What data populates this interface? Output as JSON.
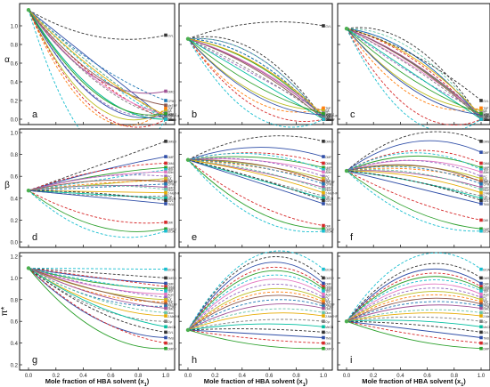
{
  "figure": {
    "xlabel": "Mole fraction of HBA solvent (x",
    "xlabel_sub": "1",
    "xlabel_end": ")",
    "row_labels": [
      "α",
      "β",
      "π*"
    ]
  },
  "solvent_labels": [
    "DMSO",
    "DMF",
    "DMA",
    "NMP",
    "TEP",
    "Acet",
    "PC",
    "EA",
    "THF",
    "MeTHF",
    "CPME",
    "DMC",
    "Diox",
    "2-MeTHF",
    "Cyr",
    "MeCN",
    "GVL",
    "TMU",
    "DMI",
    "DMPU",
    "EtOAc"
  ],
  "colors": [
    "#333333",
    "#2e4da7",
    "#d62728",
    "#2ca02c",
    "#17becf",
    "#e377c2",
    "#9467bd",
    "#bcbd22",
    "#ff7f0e",
    "#8c564b",
    "#1f77b4",
    "#a05195",
    "#66c2a5",
    "#e6ab02",
    "#7f7f7f",
    "#00bfa0"
  ],
  "chart_data": [
    {
      "type": "line",
      "panel": "a",
      "row": "α",
      "xlim": [
        0,
        1
      ],
      "ylim": [
        0,
        1.2
      ],
      "yticks": [
        0.0,
        0.2,
        0.4,
        0.6,
        0.8,
        1.0
      ],
      "x_ticks": [
        "0.0",
        "0.2",
        "0.4",
        "0.6",
        "0.8",
        "1.0"
      ],
      "start": 1.17,
      "ends": [
        0.0,
        0.0,
        0.0,
        0.0,
        0.0,
        0.05,
        0.08,
        0.1,
        0.12,
        0.15,
        0.2,
        0.3,
        0.0,
        0.04,
        0.02,
        0.0,
        0.9,
        0.05,
        0.0,
        0.06,
        0.0
      ],
      "peak": [
        -0.05,
        0.0,
        -0.15,
        -0.3,
        -0.1,
        -0.2,
        -0.4,
        -0.5,
        -0.6,
        -0.2,
        -0.1,
        -0.3,
        -0.05,
        -0.1,
        -0.2,
        -0.3,
        -0.15,
        -0.4,
        -0.5,
        -0.35,
        -0.9
      ]
    },
    {
      "type": "line",
      "panel": "b",
      "row": "α",
      "xlim": [
        0,
        1
      ],
      "ylim": [
        0,
        1.2
      ],
      "yticks": [
        0.0,
        0.2,
        0.4,
        0.6,
        0.8,
        1.0
      ],
      "x_ticks": [
        "0.0",
        "0.2",
        "0.4",
        "0.6",
        "0.8",
        "1.0"
      ],
      "start": 0.86,
      "ends": [
        0.0,
        0.0,
        0.0,
        0.02,
        0.0,
        0.05,
        0.08,
        0.1,
        0.12,
        0.0,
        0.0,
        0.03,
        0.0,
        0.04,
        0.02,
        0.0,
        1.0,
        0.05,
        0.0,
        0.06,
        0.0
      ],
      "peak": [
        0.3,
        0.25,
        0.2,
        0.15,
        0.2,
        0.1,
        0.0,
        -0.2,
        -0.3,
        0.1,
        0.2,
        0.1,
        0.25,
        0.15,
        0.05,
        0.0,
        0.1,
        -0.2,
        -0.3,
        -0.1,
        -0.4
      ]
    },
    {
      "type": "line",
      "panel": "c",
      "row": "α",
      "xlim": [
        0,
        1
      ],
      "ylim": [
        0,
        1.2
      ],
      "yticks": [
        0.0,
        0.2,
        0.4,
        0.6,
        0.8,
        1.0
      ],
      "x_ticks": [
        "0.0",
        "0.2",
        "0.4",
        "0.6",
        "0.8",
        "1.0"
      ],
      "start": 0.97,
      "ends": [
        0.0,
        0.0,
        0.0,
        0.02,
        0.0,
        0.05,
        0.08,
        0.1,
        0.12,
        0.0,
        0.0,
        0.03,
        0.0,
        0.04,
        0.02,
        0.0,
        0.2,
        0.05,
        0.0,
        0.06,
        0.0
      ],
      "peak": [
        0.3,
        0.2,
        0.15,
        0.1,
        0.2,
        0.05,
        -0.05,
        -0.2,
        -0.3,
        0.1,
        0.2,
        0.1,
        0.25,
        0.15,
        0.05,
        0.0,
        0.1,
        -0.2,
        -0.4,
        -0.1,
        -0.5
      ]
    },
    {
      "type": "line",
      "panel": "d",
      "row": "β",
      "xlim": [
        0,
        1
      ],
      "ylim": [
        0,
        1.0
      ],
      "yticks": [
        0.0,
        0.2,
        0.4,
        0.6,
        0.8,
        1.0
      ],
      "x_ticks": [
        "0.0",
        "0.2",
        "0.4",
        "0.6",
        "0.8",
        "1.0"
      ],
      "start": 0.47,
      "ends": [
        0.92,
        0.78,
        0.72,
        0.68,
        0.66,
        0.64,
        0.6,
        0.58,
        0.56,
        0.55,
        0.53,
        0.5,
        0.48,
        0.45,
        0.42,
        0.4,
        0.38,
        0.35,
        0.18,
        0.12,
        0.1
      ],
      "peak": [
        0.0,
        0.02,
        0.05,
        0.03,
        0.0,
        0.04,
        0.06,
        0.0,
        0.02,
        0.05,
        0.0,
        0.03,
        0.04,
        0.0,
        -0.02,
        0.0,
        0.02,
        0.0,
        -0.1,
        -0.15,
        -0.2
      ]
    },
    {
      "type": "line",
      "panel": "e",
      "row": "β",
      "xlim": [
        0,
        1
      ],
      "ylim": [
        0,
        1.0
      ],
      "yticks": [
        0.0,
        0.2,
        0.4,
        0.6,
        0.8,
        1.0
      ],
      "x_ticks": [
        "0.0",
        "0.2",
        "0.4",
        "0.6",
        "0.8",
        "1.0"
      ],
      "start": 0.75,
      "ends": [
        0.92,
        0.78,
        0.72,
        0.68,
        0.66,
        0.64,
        0.6,
        0.58,
        0.56,
        0.55,
        0.53,
        0.5,
        0.48,
        0.45,
        0.42,
        0.4,
        0.38,
        0.35,
        0.15,
        0.12,
        0.1
      ],
      "peak": [
        0.12,
        0.1,
        0.08,
        0.06,
        0.1,
        0.05,
        0.07,
        0.04,
        0.03,
        0.06,
        0.05,
        0.02,
        0.04,
        0.03,
        0.0,
        0.0,
        0.02,
        0.0,
        -0.1,
        -0.15,
        -0.2
      ]
    },
    {
      "type": "line",
      "panel": "f",
      "row": "β",
      "xlim": [
        0,
        1
      ],
      "ylim": [
        0,
        1.0
      ],
      "yticks": [
        0.0,
        0.2,
        0.4,
        0.6,
        0.8,
        1.0
      ],
      "x_ticks": [
        "0.0",
        "0.2",
        "0.4",
        "0.6",
        "0.8",
        "1.0"
      ],
      "start": 0.65,
      "ends": [
        0.92,
        0.82,
        0.72,
        0.68,
        0.66,
        0.64,
        0.6,
        0.58,
        0.56,
        0.55,
        0.53,
        0.5,
        0.48,
        0.45,
        0.42,
        0.4,
        0.38,
        0.35,
        0.2,
        0.12,
        0.1
      ],
      "peak": [
        0.2,
        0.18,
        0.15,
        0.12,
        0.16,
        0.1,
        0.12,
        0.08,
        0.06,
        0.1,
        0.09,
        0.05,
        0.07,
        0.05,
        0.02,
        0.03,
        0.04,
        0.0,
        -0.05,
        -0.1,
        -0.15
      ]
    },
    {
      "type": "line",
      "panel": "g",
      "row": "π*",
      "xlim": [
        0,
        1
      ],
      "ylim": [
        0.2,
        1.2
      ],
      "yticks": [
        0.2,
        0.4,
        0.6,
        0.8,
        1.0,
        1.2
      ],
      "x_ticks": [
        "0.0",
        "0.2",
        "0.4",
        "0.6",
        "0.8",
        "1.0"
      ],
      "start": 1.09,
      "ends": [
        1.0,
        0.95,
        0.92,
        0.9,
        0.88,
        0.85,
        0.82,
        0.8,
        0.78,
        0.76,
        0.74,
        0.72,
        0.68,
        0.65,
        0.6,
        0.55,
        0.5,
        0.45,
        0.4,
        0.35,
        1.08
      ],
      "peak": [
        0.0,
        -0.02,
        0.0,
        -0.04,
        -0.02,
        -0.05,
        -0.03,
        -0.06,
        -0.08,
        -0.04,
        -0.1,
        -0.06,
        -0.08,
        -0.1,
        -0.12,
        -0.08,
        -0.1,
        -0.15,
        -0.12,
        -0.2,
        0.0
      ]
    },
    {
      "type": "line",
      "panel": "h",
      "row": "π*",
      "xlim": [
        0,
        1
      ],
      "ylim": [
        0.2,
        1.2
      ],
      "yticks": [
        0.2,
        0.4,
        0.6,
        0.8,
        1.0,
        1.2
      ],
      "x_ticks": [
        "0.0",
        "0.2",
        "0.4",
        "0.6",
        "0.8",
        "1.0"
      ],
      "start": 0.52,
      "ends": [
        1.0,
        0.95,
        0.92,
        0.9,
        0.88,
        0.85,
        0.82,
        0.8,
        0.78,
        0.76,
        0.74,
        0.72,
        0.68,
        0.65,
        0.6,
        0.55,
        0.5,
        0.45,
        0.4,
        0.35,
        1.08
      ],
      "peak": [
        0.4,
        0.38,
        0.35,
        0.33,
        0.3,
        0.28,
        0.25,
        0.22,
        0.2,
        0.18,
        0.15,
        0.12,
        0.1,
        0.08,
        0.05,
        0.04,
        0.02,
        0.0,
        -0.02,
        -0.05,
        0.4
      ]
    },
    {
      "type": "line",
      "panel": "i",
      "row": "π*",
      "xlim": [
        0,
        1
      ],
      "ylim": [
        0.2,
        1.2
      ],
      "yticks": [
        0.2,
        0.4,
        0.6,
        0.8,
        1.0,
        1.2
      ],
      "x_ticks": [
        "0.0",
        "0.2",
        "0.4",
        "0.6",
        "0.8",
        "1.0"
      ],
      "start": 0.6,
      "ends": [
        1.0,
        0.95,
        0.92,
        0.9,
        0.88,
        0.85,
        0.82,
        0.8,
        0.78,
        0.76,
        0.74,
        0.72,
        0.68,
        0.65,
        0.6,
        0.55,
        0.5,
        0.45,
        0.4,
        0.35,
        1.08
      ],
      "peak": [
        0.3,
        0.28,
        0.26,
        0.24,
        0.22,
        0.2,
        0.18,
        0.16,
        0.14,
        0.12,
        0.1,
        0.08,
        0.06,
        0.05,
        0.04,
        0.03,
        0.02,
        0.0,
        -0.02,
        -0.05,
        0.35
      ]
    }
  ]
}
